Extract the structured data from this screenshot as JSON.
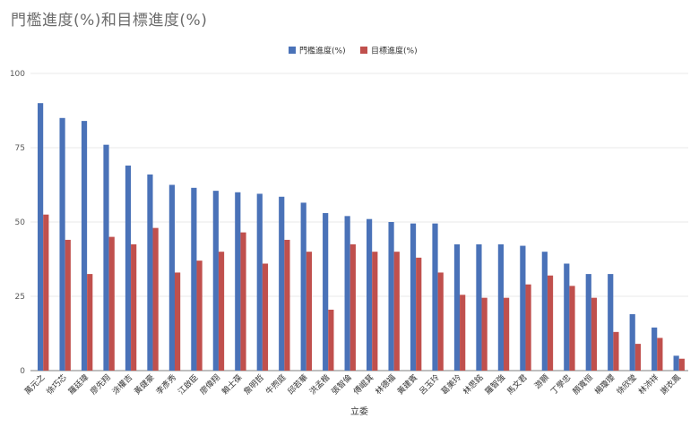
{
  "chart_data": {
    "type": "bar",
    "title": "門檻進度(%)和目標進度(%)",
    "xlabel": "立委",
    "ylabel": "",
    "ylim": [
      0,
      100
    ],
    "yticks": [
      0,
      25,
      50,
      75,
      100
    ],
    "grid": true,
    "legend_position": "top-center",
    "categories": [
      "萬元之",
      "徐巧芯",
      "羅廷瑋",
      "廖先翔",
      "涂權吉",
      "黃健豪",
      "李彥秀",
      "江啟臣",
      "廖偉翔",
      "賴士葆",
      "詹明哲",
      "牛煦庭",
      "邱若華",
      "洪孟楷",
      "張智倫",
      "傅崐萁",
      "林德福",
      "黃建賓",
      "呂玉玲",
      "葛美玲",
      "林思銘",
      "羅智強",
      "馬文君",
      "游顥",
      "丁學忠",
      "顏寬恒",
      "楊瓊瓔",
      "徐欣瑩",
      "林沛祥",
      "謝衣鳳"
    ],
    "series": [
      {
        "name": "門檻進度(%)",
        "color": "#4a72b8",
        "values": [
          90,
          85,
          84,
          76,
          69,
          66,
          62.5,
          61.5,
          60.5,
          60,
          59.5,
          58.5,
          56.5,
          53,
          52,
          51,
          50,
          49.5,
          49.5,
          42.5,
          42.5,
          42.5,
          42,
          40,
          36,
          32.5,
          32.5,
          19,
          14.5,
          5
        ]
      },
      {
        "name": "目標進度(%)",
        "color": "#c0504d",
        "values": [
          52.5,
          44,
          32.5,
          45,
          42.5,
          48,
          33,
          37,
          40,
          46.5,
          36,
          44,
          40,
          20.5,
          42.5,
          40,
          40,
          38,
          33,
          25.5,
          24.5,
          24.5,
          29,
          32,
          28.5,
          24.5,
          13,
          9,
          11,
          4
        ]
      }
    ]
  }
}
